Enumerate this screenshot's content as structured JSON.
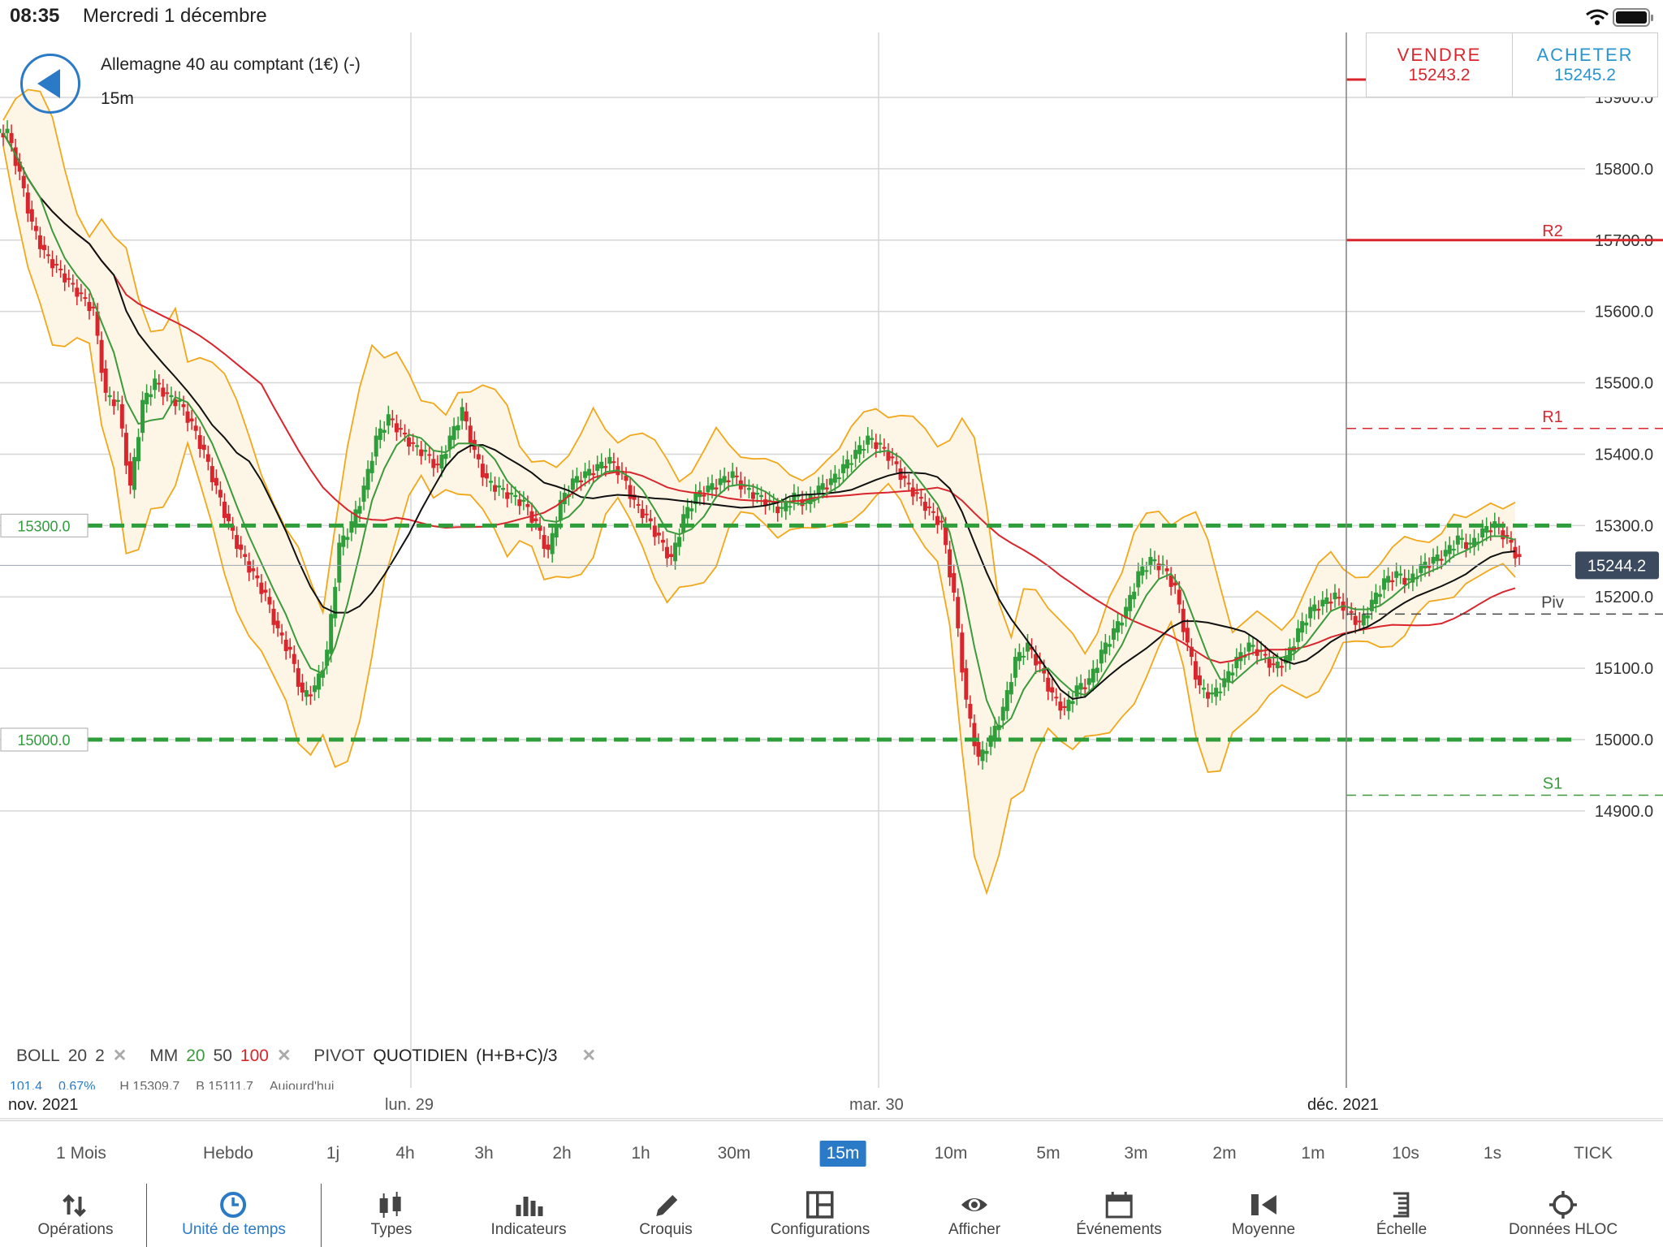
{
  "status": {
    "time": "08:35",
    "date": "Mercredi 1 décembre"
  },
  "instrument": {
    "title": "Allemagne 40 au comptant (1€) (-)",
    "timeframe": "15m"
  },
  "trade": {
    "sell_label": "VENDRE",
    "sell_price": "15243.2",
    "buy_label": "ACHETER",
    "buy_price": "15245.2",
    "sell_color": "#d9262d",
    "buy_color": "#2a95d1"
  },
  "legend": {
    "boll": "BOLL",
    "boll_p1": "20",
    "boll_p2": "2",
    "mm": "MM",
    "mm_p1": "20",
    "mm_p2": "50",
    "mm_p3": "100",
    "pivot": "PIVOT",
    "pivot_type": "QUOTIDIEN",
    "pivot_formula": "(H+B+C)/3",
    "sub_change": "101.4",
    "sub_pct": "0.67%",
    "sub_high": "H 15309.7",
    "sub_low": "B 15111.7",
    "sub_day": "Aujourd'hui"
  },
  "dates": {
    "d1": "nov. 2021",
    "d2": "lun. 29",
    "d3": "mar. 30",
    "d4": "déc. 2021"
  },
  "timeframes": [
    "1 Mois",
    "Hebdo",
    "1j",
    "4h",
    "3h",
    "2h",
    "1h",
    "30m",
    "15m",
    "10m",
    "5m",
    "3m",
    "2m",
    "1m",
    "10s",
    "1s",
    "TICK"
  ],
  "active_timeframe": "15m",
  "toolbar": [
    {
      "label": "Opérations",
      "icon": "arrows-icon"
    },
    {
      "label": "Unité de temps",
      "icon": "clock-icon"
    },
    {
      "label": "Types",
      "icon": "candles-icon"
    },
    {
      "label": "Indicateurs",
      "icon": "bars-icon"
    },
    {
      "label": "Croquis",
      "icon": "pencil-icon"
    },
    {
      "label": "Configurations",
      "icon": "layout-icon"
    },
    {
      "label": "Afficher",
      "icon": "eye-icon"
    },
    {
      "label": "Événements",
      "icon": "calendar-icon"
    },
    {
      "label": "Moyenne",
      "icon": "average-icon"
    },
    {
      "label": "Échelle",
      "icon": "scale-icon"
    },
    {
      "label": "Données HLOC",
      "icon": "crosshair-icon"
    }
  ],
  "chart_data": {
    "type": "candlestick",
    "y_ticks": [
      "15900.0",
      "15800.0",
      "15700.0",
      "15600.0",
      "15500.0",
      "15400.0",
      "15300.0",
      "15200.0",
      "15100.0",
      "15000.0",
      "14900.0"
    ],
    "ylim": [
      14880,
      15990
    ],
    "current_price": "15244.2",
    "level_labels": {
      "r2": "R2",
      "r1": "R1",
      "piv": "Piv",
      "s1": "S1"
    },
    "levels": {
      "r2": 15700,
      "r1": 15436,
      "piv": 15176,
      "s1": 14922,
      "support_high": 15300,
      "support_low": 15000
    },
    "marked_levels": [
      "15300.0",
      "15000.0"
    ],
    "colors": {
      "up": "#2e9e3a",
      "down": "#d9262d",
      "boll": "#f2a71b",
      "mm20": "#3c9a3c",
      "mm50": "#111111",
      "mm100": "#d9262d",
      "price_tag": "#3b4a5e",
      "support": "#2e9e3a"
    },
    "close_path": [
      15850,
      15790,
      15720,
      15680,
      15660,
      15640,
      15620,
      15600,
      15480,
      15470,
      15350,
      15470,
      15500,
      15480,
      15470,
      15440,
      15400,
      15350,
      15300,
      15260,
      15230,
      15200,
      15150,
      15120,
      15060,
      15070,
      15120,
      15270,
      15300,
      15350,
      15420,
      15450,
      15430,
      15410,
      15400,
      15380,
      15420,
      15460,
      15400,
      15360,
      15350,
      15340,
      15330,
      15300,
      15260,
      15330,
      15360,
      15370,
      15380,
      15390,
      15370,
      15330,
      15310,
      15280,
      15250,
      15310,
      15340,
      15350,
      15360,
      15370,
      15350,
      15340,
      15330,
      15320,
      15340,
      15330,
      15350,
      15360,
      15380,
      15400,
      15420,
      15410,
      15390,
      15360,
      15340,
      15320,
      15300,
      15200,
      15050,
      14970,
      15000,
      15040,
      15110,
      15130,
      15100,
      15060,
      15040,
      15070,
      15080,
      15120,
      15150,
      15180,
      15230,
      15250,
      15240,
      15210,
      15130,
      15070,
      15060,
      15080,
      15110,
      15130,
      15120,
      15100,
      15110,
      15150,
      15180,
      15190,
      15200,
      15180,
      15160,
      15190,
      15220,
      15230,
      15220,
      15240,
      15250,
      15260,
      15280,
      15270,
      15290,
      15300,
      15280,
      15250
    ]
  }
}
